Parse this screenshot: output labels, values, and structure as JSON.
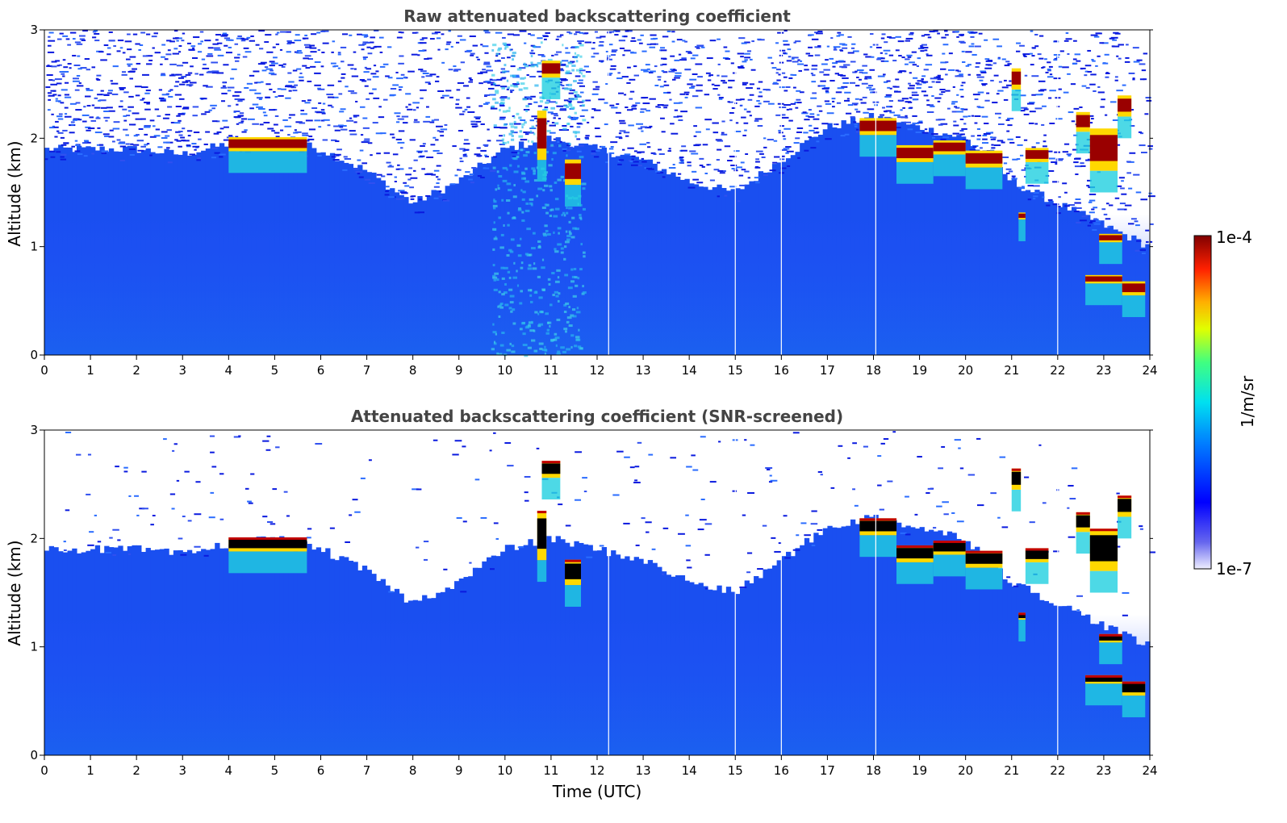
{
  "chart_data": [
    {
      "type": "heatmap",
      "title": "Raw attenuated backscattering coefficient",
      "ylabel": "Altitude (km)",
      "xlabel": "",
      "xlim": [
        0,
        24
      ],
      "ylim": [
        0,
        3
      ],
      "xticks": [
        "0",
        "1",
        "2",
        "3",
        "4",
        "5",
        "6",
        "7",
        "8",
        "9",
        "10",
        "11",
        "12",
        "13",
        "14",
        "15",
        "16",
        "17",
        "18",
        "19",
        "20",
        "21",
        "22",
        "23",
        "24"
      ],
      "yticks": [
        "0",
        "1",
        "2",
        "3"
      ],
      "colorbar": {
        "label": "1/m/sr",
        "min_label": "1e-7",
        "max_label": "1e-4",
        "colormap": "jet",
        "log_scale": true
      }
    },
    {
      "type": "heatmap",
      "title": "Attenuated backscattering coefficient (SNR-screened)",
      "ylabel": "Altitude (km)",
      "xlabel": "Time (UTC)",
      "xlim": [
        0,
        24
      ],
      "ylim": [
        0,
        3
      ],
      "xticks": [
        "0",
        "1",
        "2",
        "3",
        "4",
        "5",
        "6",
        "7",
        "8",
        "9",
        "10",
        "11",
        "12",
        "13",
        "14",
        "15",
        "16",
        "17",
        "18",
        "19",
        "20",
        "21",
        "22",
        "23",
        "24"
      ],
      "yticks": [
        "0",
        "1",
        "2",
        "3"
      ],
      "colorbar": {
        "label": "1/m/sr",
        "min_label": "1e-7",
        "max_label": "1e-4",
        "colormap": "jet",
        "log_scale": true
      }
    }
  ],
  "colors": {
    "background_aerosol": "#1a4ff0",
    "low_signal": "#0a1adf",
    "cloud_core": "#8b0000",
    "cloud_edge": "#ffd800",
    "title_gray": "#444444"
  }
}
